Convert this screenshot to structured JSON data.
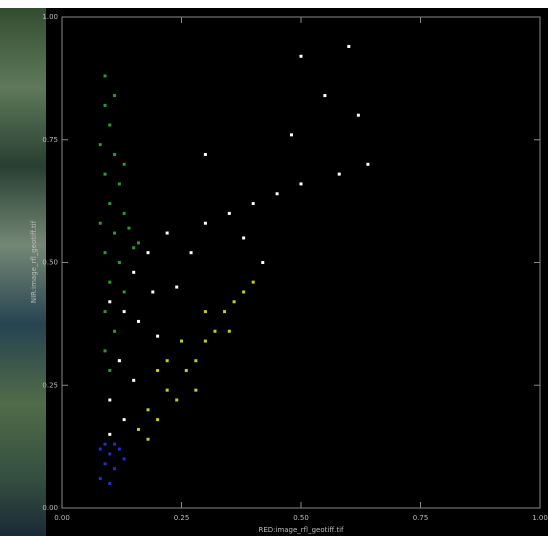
{
  "chart_data": {
    "type": "scatter",
    "x_label": "RED:image_rfl_geotiff.tif",
    "y_label": "NIR:image_rfl_geotiff.tif",
    "xlim": [
      0,
      1
    ],
    "ylim": [
      0,
      1
    ],
    "xticks": [
      {
        "value": 0,
        "label": "0.00"
      },
      {
        "value": 0.25,
        "label": "0.25"
      },
      {
        "value": 0.5,
        "label": "0.50"
      },
      {
        "value": 0.75,
        "label": "0.75"
      },
      {
        "value": 1,
        "label": "1.00"
      }
    ],
    "yticks": [
      {
        "value": 0,
        "label": "0.00"
      },
      {
        "value": 0.25,
        "label": "0.25"
      },
      {
        "value": 0.5,
        "label": "0.50"
      },
      {
        "value": 0.75,
        "label": "0.75"
      },
      {
        "value": 1,
        "label": "1.00"
      }
    ],
    "series": [
      {
        "color": "#2e9a2e",
        "x": [
          0.09,
          0.09,
          0.1,
          0.08,
          0.11,
          0.09,
          0.12,
          0.1,
          0.13,
          0.08,
          0.11,
          0.14,
          0.09,
          0.12,
          0.15,
          0.1,
          0.13,
          0.09,
          0.11,
          0.09,
          0.1,
          0.12,
          0.16,
          0.13,
          0.11
        ],
        "y": [
          0.88,
          0.82,
          0.78,
          0.74,
          0.72,
          0.68,
          0.66,
          0.62,
          0.6,
          0.58,
          0.56,
          0.57,
          0.52,
          0.5,
          0.53,
          0.46,
          0.44,
          0.4,
          0.36,
          0.32,
          0.28,
          0.3,
          0.54,
          0.7,
          0.84
        ]
      },
      {
        "color": "#ffffff",
        "x": [
          0.1,
          0.13,
          0.16,
          0.19,
          0.15,
          0.18,
          0.22,
          0.12,
          0.15,
          0.1,
          0.13,
          0.1,
          0.2,
          0.24,
          0.27,
          0.3,
          0.35,
          0.4,
          0.45,
          0.5,
          0.58,
          0.62,
          0.55,
          0.48,
          0.3,
          0.6,
          0.5,
          0.64,
          0.38,
          0.42
        ],
        "y": [
          0.42,
          0.4,
          0.38,
          0.44,
          0.48,
          0.52,
          0.56,
          0.3,
          0.26,
          0.22,
          0.18,
          0.15,
          0.35,
          0.45,
          0.52,
          0.58,
          0.6,
          0.62,
          0.64,
          0.66,
          0.68,
          0.8,
          0.84,
          0.76,
          0.72,
          0.94,
          0.92,
          0.7,
          0.55,
          0.5
        ]
      },
      {
        "color": "#c8c832",
        "x": [
          0.16,
          0.18,
          0.2,
          0.22,
          0.24,
          0.26,
          0.28,
          0.3,
          0.25,
          0.32,
          0.34,
          0.36,
          0.38,
          0.3,
          0.4,
          0.2,
          0.22,
          0.18,
          0.35,
          0.28
        ],
        "y": [
          0.16,
          0.2,
          0.18,
          0.24,
          0.22,
          0.28,
          0.3,
          0.34,
          0.34,
          0.36,
          0.4,
          0.42,
          0.44,
          0.4,
          0.46,
          0.28,
          0.3,
          0.14,
          0.36,
          0.24
        ]
      },
      {
        "color": "#2030c8",
        "x": [
          0.08,
          0.1,
          0.12,
          0.09,
          0.11,
          0.08,
          0.1,
          0.13,
          0.09,
          0.11
        ],
        "y": [
          0.12,
          0.11,
          0.12,
          0.09,
          0.08,
          0.06,
          0.05,
          0.1,
          0.13,
          0.13
        ]
      }
    ]
  }
}
